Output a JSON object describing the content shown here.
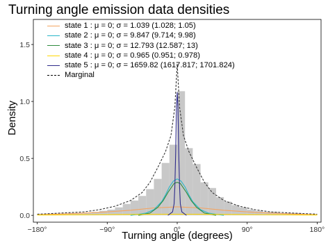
{
  "chart_data": {
    "type": "line",
    "title": "Turning angle emission data densities",
    "xlabel": "Turning angle (degrees)",
    "ylabel": "Density",
    "x_ticks": [
      {
        "value": -180,
        "label": "−180°"
      },
      {
        "value": -90,
        "label": "−90°"
      },
      {
        "value": 0,
        "label": "0°"
      },
      {
        "value": 90,
        "label": "90°"
      },
      {
        "value": 180,
        "label": "180°"
      }
    ],
    "y_ticks": [
      {
        "value": 0,
        "label": "0.0"
      },
      {
        "value": 0.5,
        "label": "0.5"
      },
      {
        "value": 1.0,
        "label": "1.0"
      },
      {
        "value": 1.5,
        "label": "1.5"
      }
    ],
    "xlim": [
      -185,
      185
    ],
    "ylim": [
      -0.06,
      1.72
    ],
    "grid": false,
    "legend_position": "top-left",
    "histogram": {
      "color": "#c8c8c8",
      "bin_width": 10,
      "bins": [
        {
          "x": -180,
          "density": 0.01
        },
        {
          "x": -170,
          "density": 0.01
        },
        {
          "x": -160,
          "density": 0.01
        },
        {
          "x": -150,
          "density": 0.01
        },
        {
          "x": -140,
          "density": 0.02
        },
        {
          "x": -130,
          "density": 0.02
        },
        {
          "x": -120,
          "density": 0.02
        },
        {
          "x": -110,
          "density": 0.03
        },
        {
          "x": -100,
          "density": 0.04
        },
        {
          "x": -90,
          "density": 0.05
        },
        {
          "x": -80,
          "density": 0.07
        },
        {
          "x": -70,
          "density": 0.1
        },
        {
          "x": -60,
          "density": 0.13
        },
        {
          "x": -50,
          "density": 0.17
        },
        {
          "x": -40,
          "density": 0.23
        },
        {
          "x": -30,
          "density": 0.32
        },
        {
          "x": -20,
          "density": 0.46
        },
        {
          "x": -10,
          "density": 0.62
        },
        {
          "x": 0,
          "density": 1.09
        },
        {
          "x": 10,
          "density": 0.59
        },
        {
          "x": 20,
          "density": 0.45
        },
        {
          "x": 30,
          "density": 0.29
        },
        {
          "x": 40,
          "density": 0.24
        },
        {
          "x": 50,
          "density": 0.16
        },
        {
          "x": 60,
          "density": 0.12
        },
        {
          "x": 70,
          "density": 0.09
        },
        {
          "x": 80,
          "density": 0.07
        },
        {
          "x": 90,
          "density": 0.05
        },
        {
          "x": 100,
          "density": 0.04
        },
        {
          "x": 110,
          "density": 0.03
        },
        {
          "x": 120,
          "density": 0.03
        },
        {
          "x": 130,
          "density": 0.02
        },
        {
          "x": 140,
          "density": 0.02
        },
        {
          "x": 150,
          "density": 0.02
        },
        {
          "x": 160,
          "density": 0.01
        },
        {
          "x": 170,
          "density": 0.01
        }
      ]
    },
    "series": [
      {
        "name": "state 1 : μ = 0;  σ = 1.039 (1.028; 1.05)",
        "color": "#f4a460",
        "style": "solid",
        "x": [
          -180,
          -150,
          -120,
          -90,
          -60,
          -30,
          0,
          30,
          60,
          90,
          120,
          150,
          180
        ],
        "y": [
          0.005,
          0.012,
          0.02,
          0.03,
          0.045,
          0.065,
          0.075,
          0.065,
          0.045,
          0.03,
          0.02,
          0.012,
          0.005
        ]
      },
      {
        "name": "state 2 : μ = 0;  σ = 9.847 (9.714; 9.98)",
        "color": "#29b6c8",
        "style": "solid",
        "x": [
          -60,
          -40,
          -30,
          -20,
          -15,
          -10,
          -5,
          0,
          5,
          10,
          15,
          20,
          30,
          40,
          60
        ],
        "y": [
          0.0,
          0.02,
          0.05,
          0.12,
          0.18,
          0.25,
          0.3,
          0.32,
          0.3,
          0.25,
          0.18,
          0.12,
          0.05,
          0.02,
          0.0
        ]
      },
      {
        "name": "state 3 : μ = 0;  σ = 12.793 (12.587; 13)",
        "color": "#2e8b3e",
        "style": "solid",
        "x": [
          -50,
          -35,
          -25,
          -18,
          -12,
          -8,
          -4,
          0,
          4,
          8,
          12,
          18,
          25,
          35,
          50
        ],
        "y": [
          0.0,
          0.02,
          0.07,
          0.13,
          0.2,
          0.24,
          0.28,
          0.29,
          0.28,
          0.24,
          0.2,
          0.13,
          0.07,
          0.02,
          0.0
        ]
      },
      {
        "name": "state 4 : μ = 0;  σ = 0.965 (0.951; 0.978)",
        "color": "#ffd700",
        "style": "solid",
        "x": [
          -180,
          -120,
          -60,
          0,
          60,
          120,
          180
        ],
        "y": [
          0.003,
          0.005,
          0.008,
          0.01,
          0.008,
          0.005,
          0.003
        ]
      },
      {
        "name": "state 5 : μ = 0;  σ = 1659.82 (1617.817; 1701.824)",
        "color": "#2d2a8a",
        "style": "solid",
        "x": [
          -12,
          -6,
          -4,
          -3,
          -2,
          -1,
          0,
          1,
          2,
          3,
          4,
          6,
          12
        ],
        "y": [
          0.0,
          0.03,
          0.1,
          0.25,
          0.55,
          0.95,
          1.08,
          0.95,
          0.55,
          0.25,
          0.1,
          0.03,
          0.0
        ]
      },
      {
        "name": "Marginal",
        "color": "#333333",
        "style": "dashed",
        "x": [
          -180,
          -150,
          -120,
          -100,
          -80,
          -60,
          -45,
          -35,
          -25,
          -15,
          -8,
          -3,
          0,
          3,
          8,
          15,
          25,
          35,
          45,
          60,
          80,
          100,
          120,
          150,
          180
        ],
        "y": [
          0.01,
          0.02,
          0.03,
          0.05,
          0.08,
          0.13,
          0.2,
          0.29,
          0.42,
          0.56,
          0.7,
          0.95,
          1.33,
          0.95,
          0.7,
          0.56,
          0.42,
          0.29,
          0.2,
          0.13,
          0.08,
          0.05,
          0.03,
          0.02,
          0.01
        ]
      }
    ]
  }
}
